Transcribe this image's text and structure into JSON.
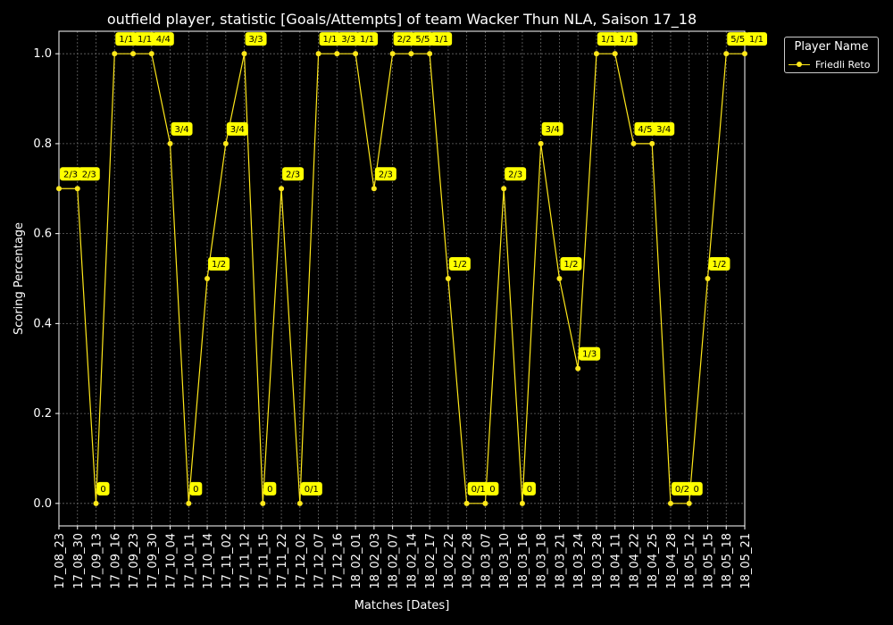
{
  "chart_data": {
    "type": "line",
    "title": "outfield player, statistic [Goals/Attempts] of team Wacker Thun NLA, Saison 17_18",
    "xlabel": "Matches [Dates]",
    "ylabel": "Scoring Percentage",
    "ylim": [
      -0.05,
      1.05
    ],
    "yticks": [
      "0.0",
      "0.2",
      "0.4",
      "0.6",
      "0.8",
      "1.0"
    ],
    "grid": true,
    "legend_placement": "upper right outside",
    "legend_title": "Player Name",
    "categories": [
      "17_08_23",
      "17_08_30",
      "17_09_13",
      "17_09_16",
      "17_09_23",
      "17_09_30",
      "17_10_04",
      "17_10_11",
      "17_10_14",
      "17_11_02",
      "17_11_12",
      "17_11_15",
      "17_11_22",
      "17_12_02",
      "17_12_07",
      "17_12_16",
      "18_02_01",
      "18_02_03",
      "18_02_07",
      "18_02_14",
      "18_02_17",
      "18_02_22",
      "18_02_28",
      "18_03_07",
      "18_03_10",
      "18_03_16",
      "18_03_18",
      "18_03_21",
      "18_03_24",
      "18_03_28",
      "18_04_11",
      "18_04_22",
      "18_04_25",
      "18_04_28",
      "18_05_12",
      "18_05_15",
      "18_05_18",
      "18_05_21"
    ],
    "series": [
      {
        "name": "Friedli Reto",
        "color": "#ffe81a",
        "values": [
          0.7,
          0.7,
          0.0,
          1.0,
          1.0,
          1.0,
          0.8,
          0.0,
          0.5,
          0.8,
          1.0,
          0.0,
          0.7,
          0.0,
          1.0,
          1.0,
          1.0,
          0.7,
          1.0,
          1.0,
          1.0,
          0.5,
          0.0,
          0.0,
          0.7,
          0.0,
          0.8,
          0.5,
          0.3,
          1.0,
          1.0,
          0.8,
          0.8,
          0.0,
          0.0,
          0.5,
          1.0,
          1.0
        ],
        "labels": [
          "2/3",
          "2/3",
          "0",
          "1/1",
          "1/1",
          "4/4",
          "3/4",
          "0",
          "1/2",
          "3/4",
          "3/3",
          "0",
          "2/3",
          "0/1",
          "1/1",
          "3/3",
          "1/1",
          "2/3",
          "2/2",
          "5/5",
          "1/1",
          "1/2",
          "0/1",
          "0",
          "2/3",
          "0",
          "3/4",
          "1/2",
          "1/3",
          "1/1",
          "1/1",
          "4/5",
          "3/4",
          "0/2",
          "0",
          "1/2",
          "5/5",
          "1/1"
        ]
      }
    ]
  },
  "colors": {
    "background": "#000000",
    "axes": "#ffffff",
    "grid": "#666666",
    "series": "#ffe81a",
    "annotation_box": "#ffff00",
    "annotation_text": "#000000"
  }
}
